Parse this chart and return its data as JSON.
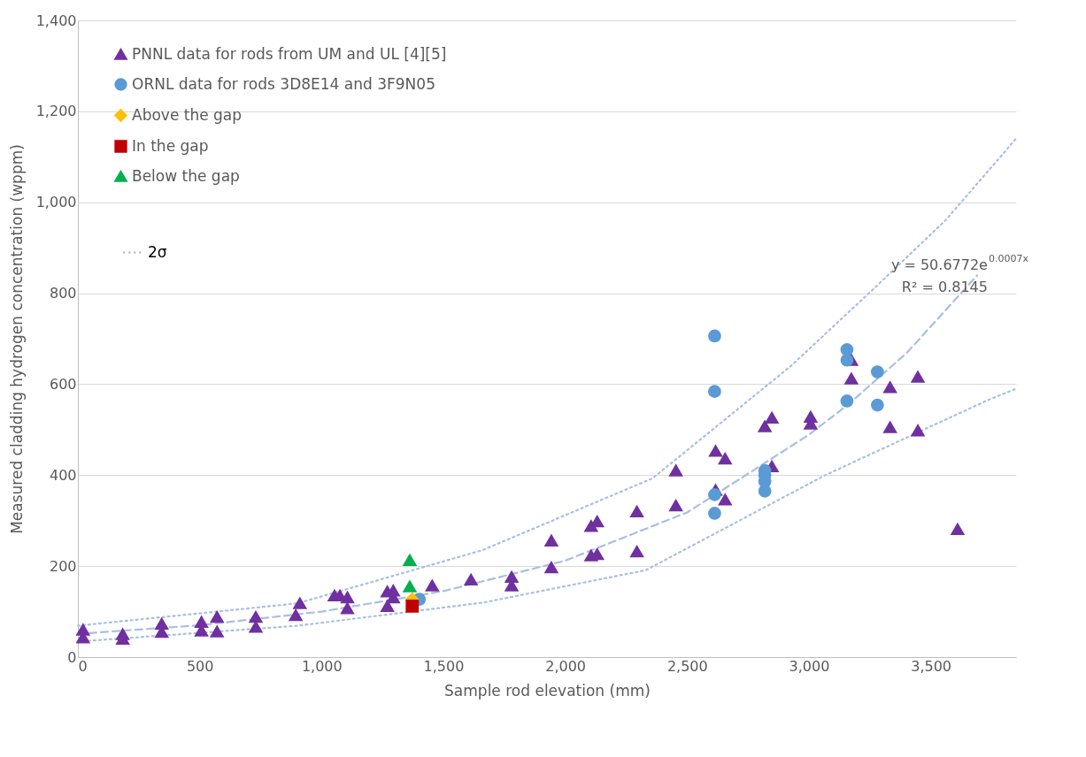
{
  "chart_data": {
    "type": "scatter",
    "xlabel": "Sample rod elevation (mm)",
    "ylabel": "Measured cladding hydrogen concentration (wppm)",
    "xlim": [
      0,
      3850
    ],
    "xticks": [
      0,
      {
        "value": 500,
        "label": "500"
      },
      {
        "value": 1000,
        "label": "1,000"
      },
      {
        "value": 1500,
        "label": "1,500"
      },
      {
        "value": 2000,
        "label": "2,000"
      },
      {
        "value": 2500,
        "label": "2,500"
      },
      {
        "value": 3000,
        "label": "3,000"
      },
      {
        "value": 3500,
        "label": "3,500"
      }
    ],
    "ylim": [
      0,
      1400
    ],
    "yticks": [
      0,
      200,
      400,
      600,
      800,
      {
        "value": 1000,
        "label": "1,000"
      },
      {
        "value": 1200,
        "label": "1,200"
      },
      {
        "value": 1400,
        "label": "1,400"
      }
    ],
    "grid": "y",
    "legend": "top left",
    "annotations": [
      "y = 50.6772e$^{0.0007x}$",
      "R² = 0.8145"
    ],
    "series": [
      {
        "name": "PNNL data for rods from UM and UL [4][5]",
        "marker": "triangle",
        "color": "#7030a0",
        "x": [
          21,
          21,
          184,
          184,
          344,
          344,
          507,
          507,
          571,
          571,
          730,
          730,
          911,
          894,
          1053,
          1075,
          1106,
          1106,
          1270,
          1294,
          1294,
          1270,
          1454,
          1613,
          1780,
          1780,
          1943,
          1943,
          2106,
          2131,
          2106,
          2131,
          2294,
          2294,
          2454,
          2454,
          2617,
          2656,
          2617,
          2656,
          2819,
          2848,
          2848,
          3007,
          3007,
          3174,
          3174,
          3333,
          3333,
          3447,
          3447,
          3610
        ],
        "values": [
          60,
          43,
          50,
          40,
          73,
          55,
          77,
          58,
          88,
          56,
          88,
          66,
          118,
          92,
          135,
          135,
          131,
          107,
          144,
          146,
          131,
          112,
          157,
          170,
          176,
          157,
          256,
          197,
          288,
          298,
          223,
          226,
          320,
          232,
          410,
          333,
          453,
          436,
          367,
          346,
          507,
          526,
          419,
          528,
          513,
          653,
          612,
          593,
          505,
          616,
          498,
          281
        ]
      },
      {
        "name": "ORNL data for rods 3D8E14 and 3F9N05",
        "marker": "circle",
        "color": "#5b9bd5",
        "x": [
          1401,
          2613,
          2613,
          2613,
          2613,
          2819,
          2819,
          2819,
          2819,
          3156,
          3156,
          3156,
          3281,
          3281
        ],
        "values": [
          127,
          706,
          584,
          357,
          316,
          410,
          400,
          386,
          365,
          676,
          653,
          563,
          627,
          554
        ]
      },
      {
        "name": "Above the gap",
        "marker": "diamond",
        "color": "#ffc000",
        "x": [
          1372
        ],
        "values": [
          127
        ]
      },
      {
        "name": "In the gap",
        "marker": "square",
        "color": "#c00000",
        "x": [
          1372
        ],
        "values": [
          112
        ]
      },
      {
        "name": "Below the gap",
        "marker": "triangle",
        "color": "#00b050",
        "x": [
          1362,
          1362
        ],
        "values": [
          213,
          155
        ]
      },
      {
        "type": "line",
        "line_style": "dashed",
        "color": "#a8bfe3",
        "x": [
          0,
          500,
          1000,
          1500,
          2000,
          2500,
          2741,
          3000,
          3160,
          3400,
          3690
        ],
        "values": [
          51,
          70,
          100,
          145,
          212,
          318,
          400,
          489,
          555,
          668,
          839
        ]
      },
      {
        "name": "2σ",
        "type": "line",
        "line_style": "dotted",
        "color": "#a8bfe3",
        "x": [
          0,
          900,
          1660,
          2358,
          2926,
          3262,
          3560,
          3850
        ],
        "values": [
          69,
          118,
          235,
          393,
          640,
          808,
          960,
          1140
        ]
      },
      {
        "type": "line",
        "line_style": "dotted",
        "color": "#a8bfe3",
        "x": [
          0,
          904,
          1665,
          2330,
          3067,
          3734,
          3850
        ],
        "values": [
          34,
          69,
          120,
          191,
          400,
          565,
          590
        ]
      }
    ]
  }
}
